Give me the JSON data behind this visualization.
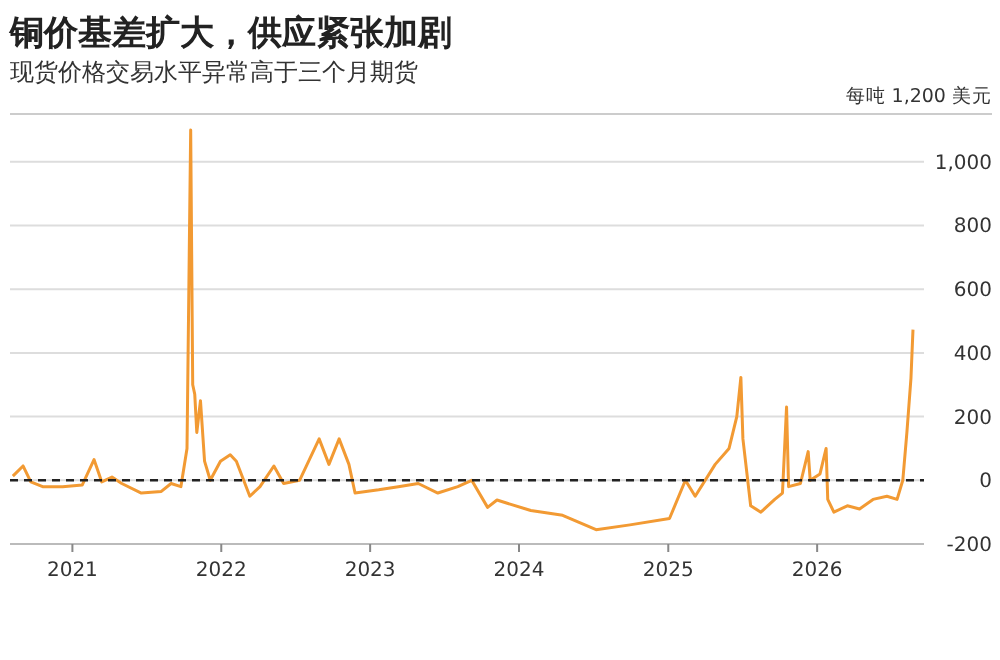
{
  "chart_data": {
    "type": "line",
    "title": "铜价基差扩大，供应紧张加剧",
    "subtitle": "现货价格交易水平异常高于三个月期货",
    "ylabel": "每吨 1,200 美元",
    "x": [
      "2020-08-08",
      "2020-09-02",
      "2020-09-21",
      "2020-10-20",
      "2020-12-08",
      "2021-01-25",
      "2021-02-23",
      "2021-03-14",
      "2021-04-08",
      "2021-05-02",
      "2021-06-19",
      "2021-08-07",
      "2021-08-31",
      "2021-09-24",
      "2021-10-09",
      "2021-10-18",
      "2021-10-23",
      "2021-10-28",
      "2021-11-02",
      "2021-11-11",
      "2021-11-21",
      "2021-12-05",
      "2021-12-30",
      "2022-01-23",
      "2022-02-07",
      "2022-03-12",
      "2022-04-06",
      "2022-05-10",
      "2022-06-03",
      "2022-07-12",
      "2022-08-29",
      "2022-09-22",
      "2022-10-17",
      "2022-11-10",
      "2022-11-25",
      "2023-01-22",
      "2023-03-11",
      "2023-04-29",
      "2023-06-16",
      "2023-08-04",
      "2023-09-07",
      "2023-10-16",
      "2023-11-08",
      "2024-01-30",
      "2024-04-17",
      "2024-07-08",
      "2024-09-29",
      "2025-01-04",
      "2025-02-12",
      "2025-03-08",
      "2025-04-26",
      "2025-05-30",
      "2025-06-18",
      "2025-06-28",
      "2025-07-03",
      "2025-07-22",
      "2025-08-16",
      "2025-09-19",
      "2025-10-08",
      "2025-10-18",
      "2025-10-23",
      "2025-11-21",
      "2025-12-10",
      "2025-12-15",
      "2026-01-08",
      "2026-01-23",
      "2026-01-27",
      "2026-02-11",
      "2026-03-16",
      "2026-04-15",
      "2026-05-18",
      "2026-06-21",
      "2026-07-16",
      "2026-07-30",
      "2026-08-09",
      "2026-08-19",
      "2026-08-24"
    ],
    "series": [
      {
        "color": "#f29a33",
        "values": [
          13,
          45,
          -5,
          -20,
          -20,
          -15,
          65,
          -5,
          10,
          -10,
          -40,
          -35,
          -10,
          -20,
          100,
          1100,
          300,
          270,
          150,
          250,
          60,
          0,
          60,
          80,
          60,
          -50,
          -20,
          45,
          -10,
          0,
          130,
          50,
          130,
          50,
          -40,
          -30,
          -20,
          -10,
          -40,
          -20,
          0,
          -85,
          -62,
          -95,
          -110,
          -155,
          -140,
          -120,
          0,
          -50,
          50,
          100,
          200,
          323,
          130,
          -80,
          -100,
          -60,
          -40,
          230,
          -20,
          -10,
          90,
          0,
          20,
          100,
          -60,
          -100,
          -80,
          -90,
          -60,
          -50,
          -60,
          0,
          150,
          320,
          473
        ]
      }
    ],
    "xlim": [
      "2020-08-01",
      "2026-09-20"
    ],
    "xticks": [
      {
        "value": "2021-01-01",
        "label": "2021"
      },
      {
        "value": "2022-01-01",
        "label": "2022"
      },
      {
        "value": "2023-01-01",
        "label": "2023"
      },
      {
        "value": "2024-01-01",
        "label": "2024"
      },
      {
        "value": "2025-01-01",
        "label": "2025"
      },
      {
        "value": "2026-01-01",
        "label": "2026"
      }
    ],
    "ylim": [
      -200,
      1150
    ],
    "yticks": [
      -200,
      0,
      200,
      400,
      600,
      800,
      {
        "value": 1000,
        "label": "1,000"
      }
    ],
    "grid": "y",
    "ref_lines": [
      {
        "axis": "y",
        "value": 0,
        "color": "#222222",
        "line_style": "dashed"
      }
    ]
  }
}
